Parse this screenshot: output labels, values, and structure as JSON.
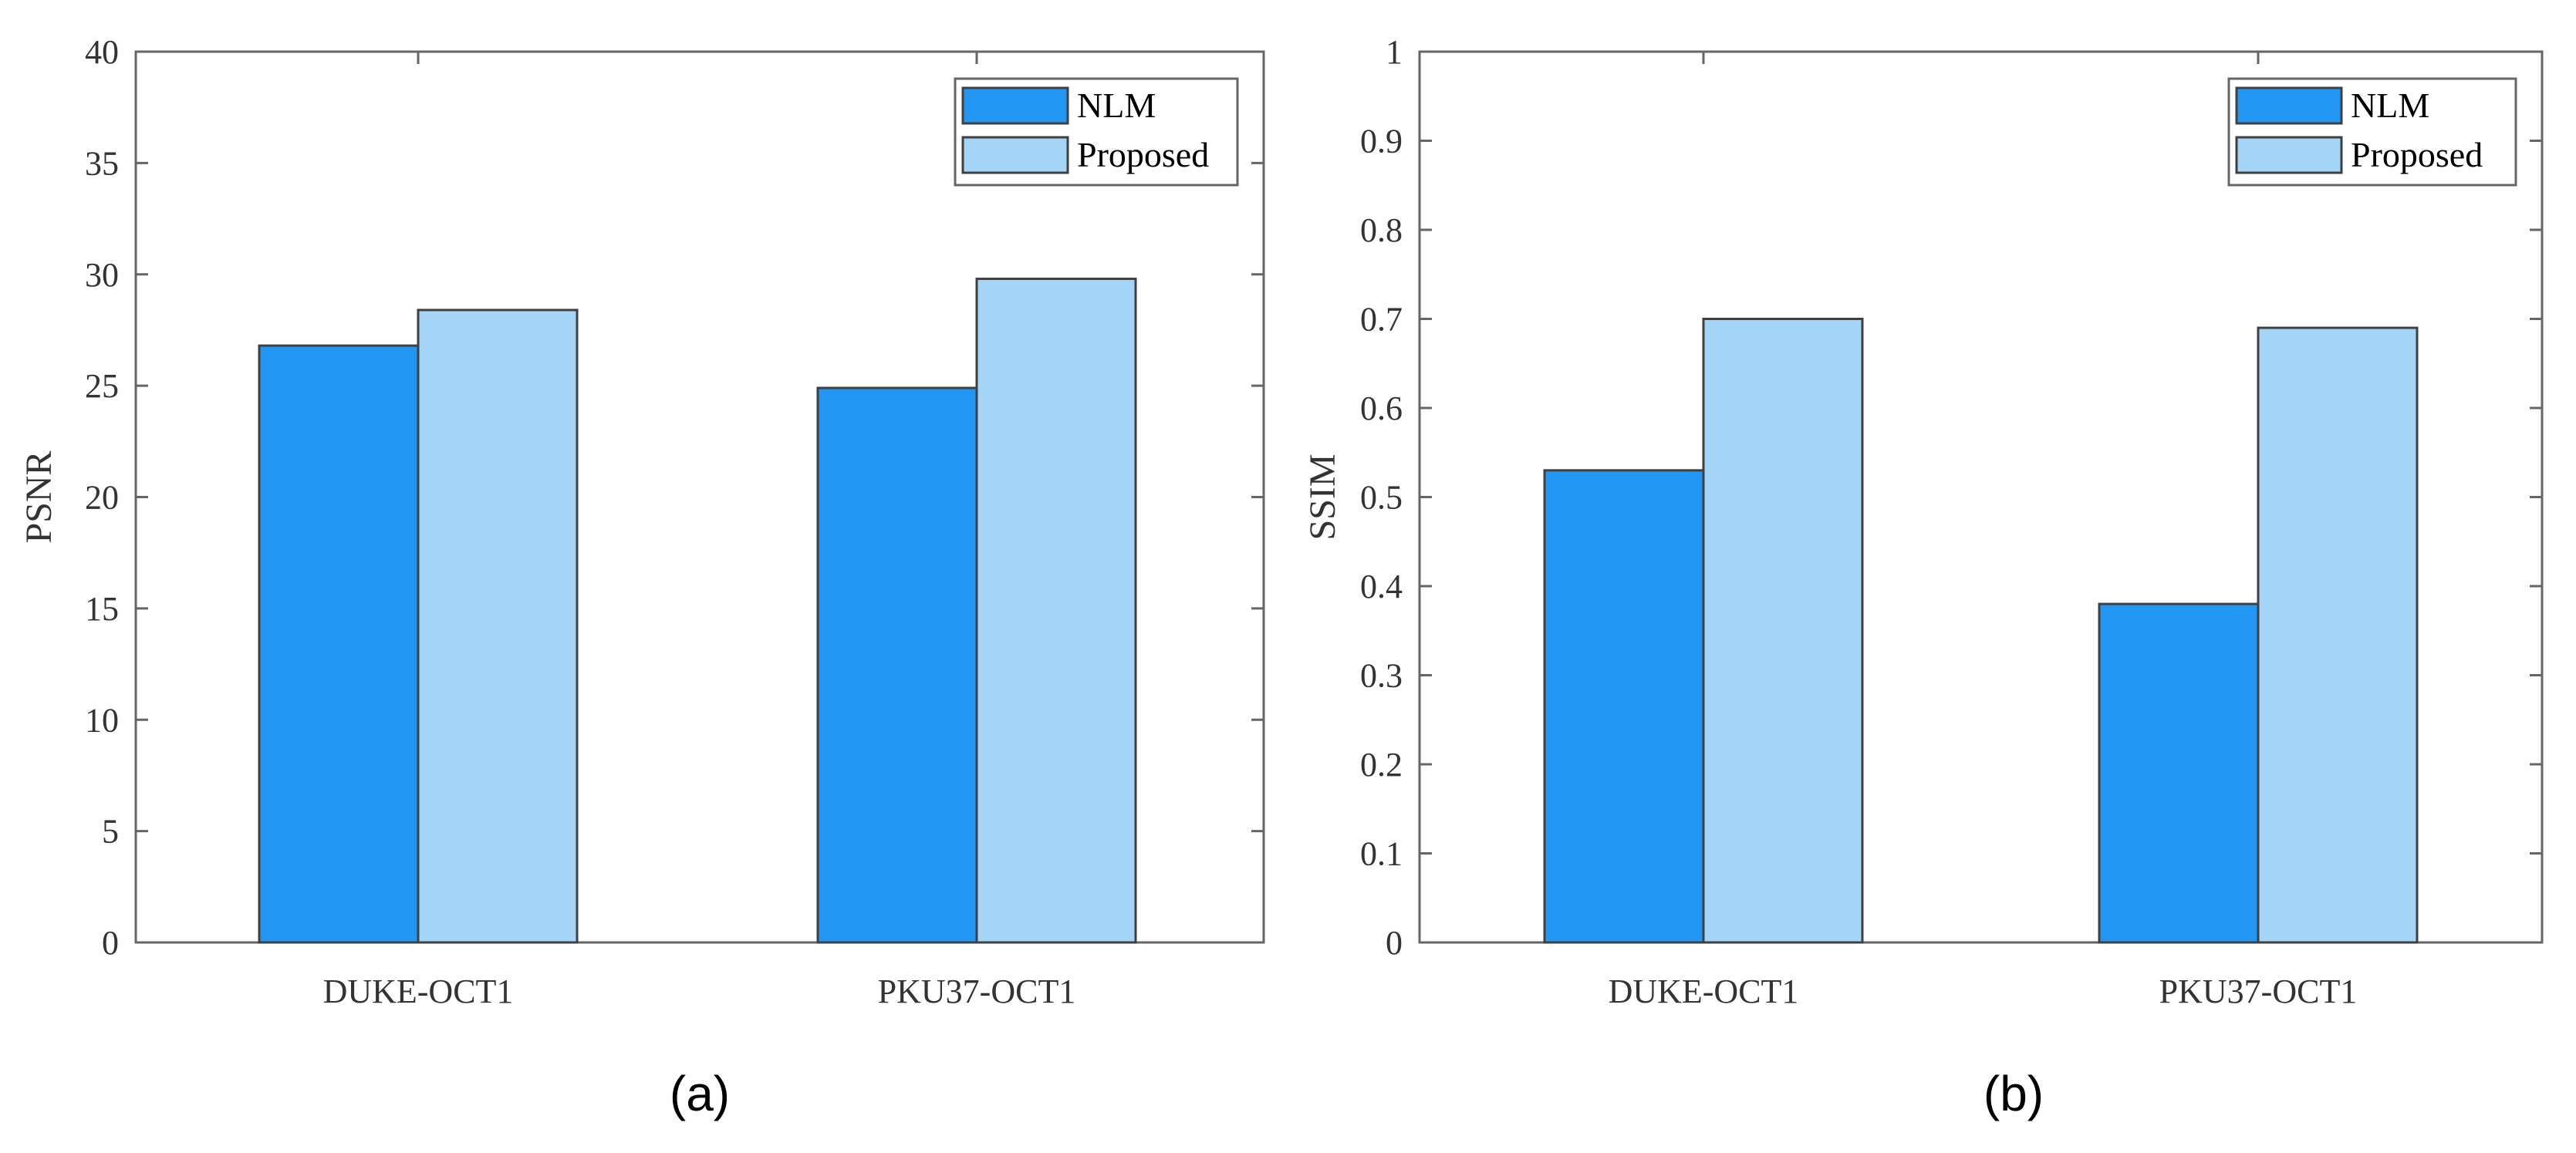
{
  "colors": {
    "nlm": "#2196f3",
    "proposed": "#a5d5f6",
    "axis": "#666666",
    "bar_edge": "#404040"
  },
  "chart_data": [
    {
      "type": "bar",
      "caption": "(a)",
      "categories": [
        "DUKE-OCT1",
        "PKU37-OCT1"
      ],
      "series": [
        {
          "name": "NLM",
          "values": [
            26.8,
            24.9
          ]
        },
        {
          "name": "Proposed",
          "values": [
            28.4,
            29.8
          ]
        }
      ],
      "xlabel": "",
      "ylabel": "PSNR",
      "ylim": [
        0,
        40
      ],
      "yticks": [
        0,
        5,
        10,
        15,
        20,
        25,
        30,
        35,
        40
      ],
      "ytick_labels": [
        "0",
        "5",
        "10",
        "15",
        "20",
        "25",
        "30",
        "35",
        "40"
      ],
      "grid": false,
      "legend_position": "top-right"
    },
    {
      "type": "bar",
      "caption": "(b)",
      "categories": [
        "DUKE-OCT1",
        "PKU37-OCT1"
      ],
      "series": [
        {
          "name": "NLM",
          "values": [
            0.53,
            0.38
          ]
        },
        {
          "name": "Proposed",
          "values": [
            0.7,
            0.69
          ]
        }
      ],
      "xlabel": "",
      "ylabel": "SSIM",
      "ylim": [
        0,
        1
      ],
      "yticks": [
        0,
        0.1,
        0.2,
        0.3,
        0.4,
        0.5,
        0.6,
        0.7,
        0.8,
        0.9,
        1
      ],
      "ytick_labels": [
        "0",
        "0.1",
        "0.2",
        "0.3",
        "0.4",
        "0.5",
        "0.6",
        "0.7",
        "0.8",
        "0.9",
        "1"
      ],
      "grid": false,
      "legend_position": "top-right"
    }
  ]
}
